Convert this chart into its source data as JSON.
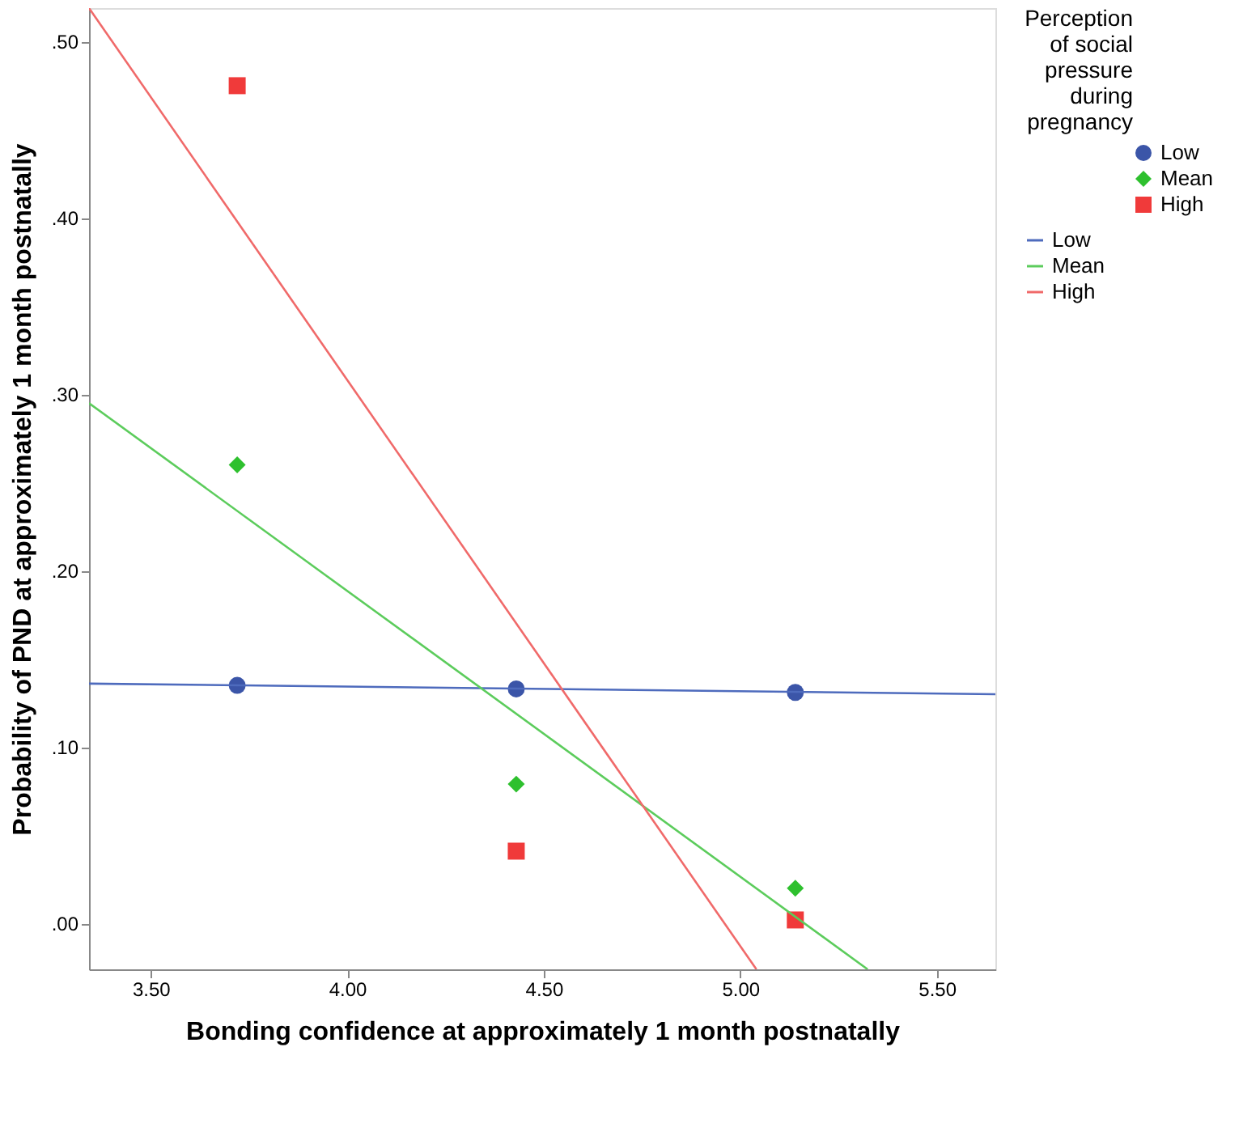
{
  "chart_data": {
    "type": "scatter",
    "xlabel": "Bonding confidence at approximately 1 month postnatally",
    "ylabel": "Probability of PND at approximately 1 month postnatally",
    "legend_title": "Perception of social pressure during pregnancy",
    "legend": "top right",
    "grid": false,
    "xlim": [
      3.343,
      5.649
    ],
    "ylim": [
      -0.026,
      0.519
    ],
    "xticks": [
      {
        "value": 3.5,
        "label": "3.50"
      },
      {
        "value": 4.0,
        "label": "4.00"
      },
      {
        "value": 4.5,
        "label": "4.50"
      },
      {
        "value": 5.0,
        "label": "5.00"
      },
      {
        "value": 5.5,
        "label": "5.50"
      }
    ],
    "yticks": [
      {
        "value": 0,
        "label": ".00"
      },
      {
        "value": 0.1,
        "label": ".10"
      },
      {
        "value": 0.2,
        "label": ".20"
      },
      {
        "value": 0.3,
        "label": ".30"
      },
      {
        "value": 0.4,
        "label": ".40"
      },
      {
        "value": 0.5,
        "label": ".50"
      }
    ],
    "series": [
      {
        "name": "Low",
        "marker": "circle",
        "color": "#3b55a8",
        "x": [
          3.72,
          4.43,
          5.14
        ],
        "values": [
          0.135,
          0.133,
          0.131
        ]
      },
      {
        "name": "Mean",
        "marker": "diamond",
        "color": "#2ec02e",
        "x": [
          3.72,
          4.43,
          5.14
        ],
        "values": [
          0.26,
          0.079,
          0.02
        ]
      },
      {
        "name": "High",
        "marker": "square",
        "color": "#f03a3a",
        "x": [
          3.72,
          4.43,
          5.14
        ],
        "values": [
          0.475,
          0.041,
          0.002
        ]
      },
      {
        "name": "Low",
        "type": "line",
        "color": "#4e6bbd",
        "x": [
          3.343,
          5.649
        ],
        "values": [
          0.136,
          0.13
        ]
      },
      {
        "name": "Mean",
        "type": "line",
        "color": "#5ccc5c",
        "x": [
          3.343,
          5.324
        ],
        "values": [
          0.295,
          -0.026
        ]
      },
      {
        "name": "High",
        "type": "line",
        "color": "#f06a6a",
        "x": [
          3.343,
          5.041
        ],
        "values": [
          0.519,
          -0.026
        ]
      }
    ]
  }
}
